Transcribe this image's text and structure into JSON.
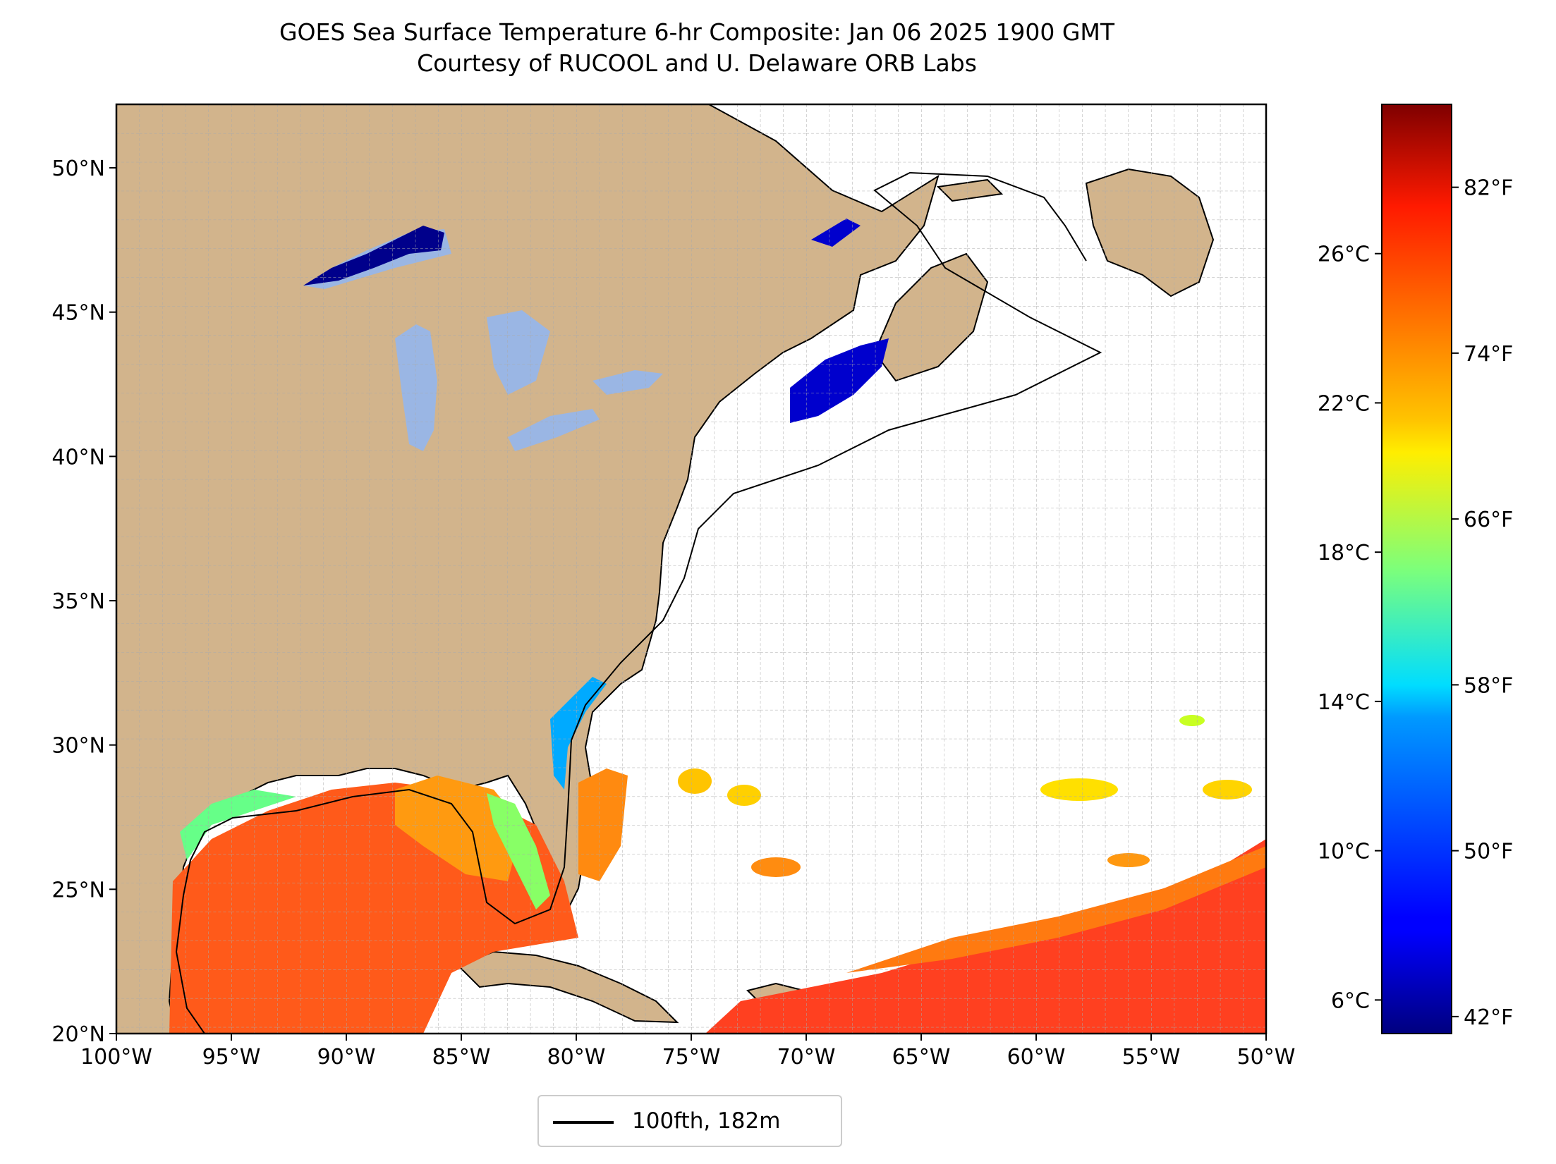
{
  "title": "GOES Sea Surface Temperature 6-hr Composite: Jan 06 2025 1900 GMT",
  "subtitle": "Courtesy of RUCOOL and U. Delaware ORB Labs",
  "map": {
    "lon_range": [
      -100,
      -50
    ],
    "lat_range": [
      20,
      52.2
    ],
    "lon_ticks": [
      "100°W",
      "95°W",
      "90°W",
      "85°W",
      "80°W",
      "75°W",
      "70°W",
      "65°W",
      "60°W",
      "55°W",
      "50°W"
    ],
    "lat_ticks": [
      "20°N",
      "25°N",
      "30°N",
      "35°N",
      "40°N",
      "45°N",
      "50°N"
    ],
    "gridlines": true,
    "land_color": "#d2b48c",
    "lake_color": "#9ab6e4",
    "ocean_color": "#ffffff"
  },
  "colorbar": {
    "colormap": "jet",
    "celsius_ticks": [
      "6°C",
      "10°C",
      "14°C",
      "18°C",
      "22°C",
      "26°C"
    ],
    "fahrenheit_ticks": [
      "42°F",
      "50°F",
      "58°F",
      "66°F",
      "74°F",
      "82°F"
    ]
  },
  "legend": {
    "label": "100fth, 182m",
    "line_color": "#000000"
  }
}
